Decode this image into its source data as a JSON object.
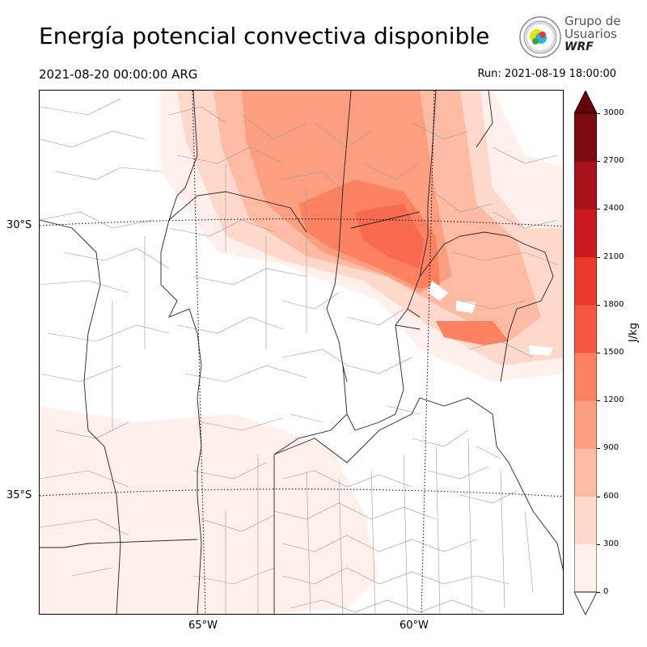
{
  "title": "Energía potencial convectiva disponible",
  "valid_time": "2021-08-20 00:00:00 ARG",
  "run_time": "Run: 2021-08-19 18:00:00",
  "logo": {
    "line1": "Grupo de",
    "line2": "Usuarios",
    "line3": "WRF"
  },
  "lat_labels": [
    "30°S",
    "35°S"
  ],
  "lon_labels": [
    "65°W",
    "60°W"
  ],
  "colorbar": {
    "label": "J/kg",
    "ticks": [
      "0",
      "300",
      "600",
      "900",
      "1200",
      "1500",
      "1800",
      "2100",
      "2400",
      "2700",
      "3000"
    ],
    "colors": [
      "#fff0eb",
      "#fed9cb",
      "#fcbba2",
      "#fc9f81",
      "#fb8161",
      "#f6583f",
      "#ea382b",
      "#cb1b1e",
      "#a8121a",
      "#7b0a11"
    ],
    "extend": "both"
  }
}
